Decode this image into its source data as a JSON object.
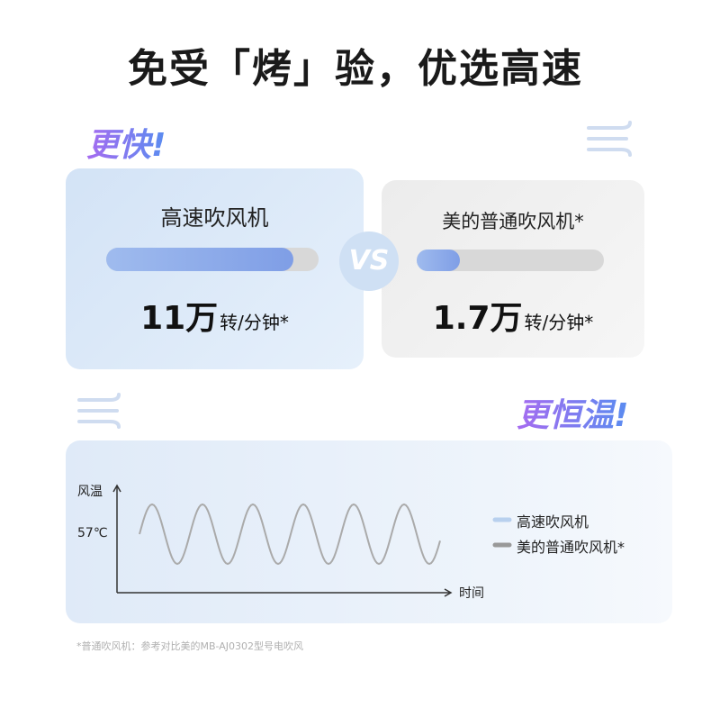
{
  "header": {
    "title": "免受「烤」验，优选高速"
  },
  "speed": {
    "heading": "更快!",
    "left": {
      "label": "高速吹风机",
      "value": "11万",
      "unit": "转/分钟*"
    },
    "vs": "VS",
    "right": {
      "label": "美的普通吹风机*",
      "value": "1.7万",
      "unit": "转/分钟*"
    }
  },
  "temperature": {
    "heading": "更恒温!",
    "y_label": "风温",
    "y_tick": "57℃",
    "x_label": "时间",
    "legend": [
      "高速吹风机",
      "美的普通吹风机*"
    ]
  },
  "footnote": "*普通吹风机：参考对比美的MB-AJ0302型号电吹风"
}
